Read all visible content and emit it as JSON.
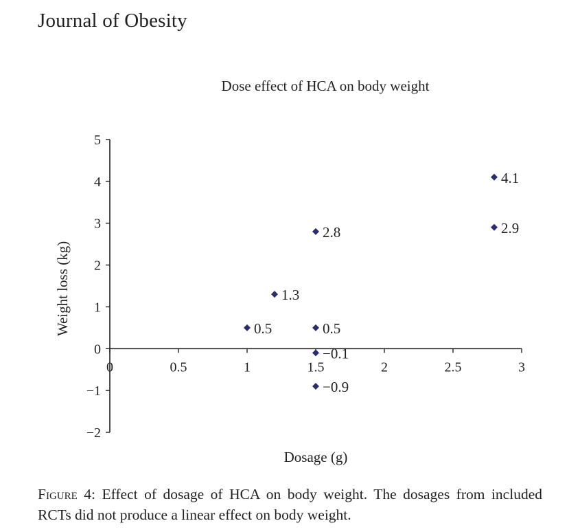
{
  "journal": {
    "title": "Journal of Obesity"
  },
  "chart_data": {
    "type": "scatter",
    "title": "Dose effect of HCA on body weight",
    "xlabel": "Dosage (g)",
    "ylabel": "Weight loss (kg)",
    "xlim": [
      0,
      3
    ],
    "ylim": [
      -2,
      5
    ],
    "xticks": [
      "0",
      "0.5",
      "1",
      "1.5",
      "2",
      "2.5",
      "3"
    ],
    "yticks": [
      "5",
      "4",
      "3",
      "2",
      "1",
      "0",
      "−1",
      "−2"
    ],
    "grid": false,
    "marker": "diamond",
    "marker_color": "#2b2d6e",
    "points": [
      {
        "x": 1.0,
        "y": 0.5,
        "label": "0.5"
      },
      {
        "x": 1.2,
        "y": 1.3,
        "label": "1.3"
      },
      {
        "x": 1.5,
        "y": 2.8,
        "label": "2.8"
      },
      {
        "x": 1.5,
        "y": 0.5,
        "label": "0.5"
      },
      {
        "x": 1.5,
        "y": -0.1,
        "label": "−0.1"
      },
      {
        "x": 1.5,
        "y": -0.9,
        "label": "−0.9"
      },
      {
        "x": 2.8,
        "y": 4.1,
        "label": "4.1"
      },
      {
        "x": 2.8,
        "y": 2.9,
        "label": "2.9"
      }
    ]
  },
  "caption": {
    "prefix": "Figure 4:",
    "text": "Effect of dosage of HCA on body weight. The dosages from included RCTs did not produce a linear effect on body weight."
  }
}
